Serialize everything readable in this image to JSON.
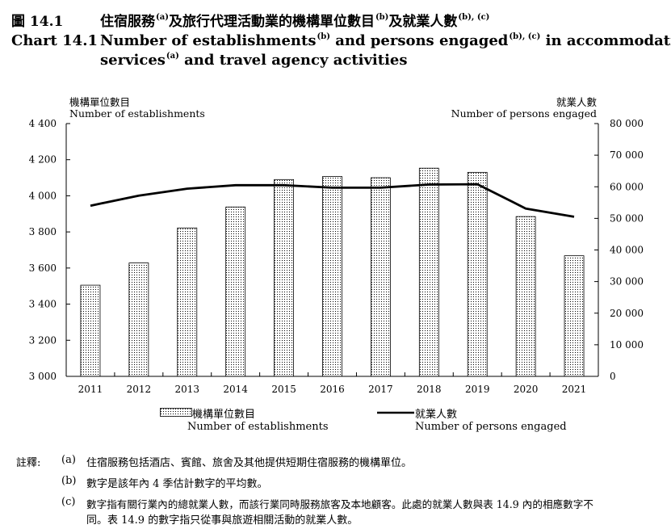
{
  "header": {
    "label_zh": "圖 14.1",
    "title_zh_1": "住宿服務",
    "sup_a_zh": "(a)",
    "title_zh_2": "及旅行代理活動業的機構單位數目",
    "sup_b_zh": "(b)",
    "title_zh_3": "及就業人數",
    "sup_bc_zh": "(b), (c)",
    "label_en": "Chart 14.1",
    "title_en_1": "Number of establishments",
    "sup_b_en": "(b)",
    "title_en_2": " and persons engaged",
    "sup_bc_en": "(b), (c)",
    "title_en_3": " in accommodation",
    "title_en_4": "services",
    "sup_a_en": "(a)",
    "title_en_5": " and travel agency activities"
  },
  "axes": {
    "left_title_zh": "機構單位數目",
    "left_title_en": "Number of establishments",
    "right_title_zh": "就業人數",
    "right_title_en": "Number of persons engaged",
    "left_ticks": [
      "4 400",
      "4 200",
      "4 000",
      "3 800",
      "3 600",
      "3 400",
      "3 200",
      "3 000"
    ],
    "right_ticks": [
      "80 000",
      "70 000",
      "60 000",
      "50 000",
      "40 000",
      "30 000",
      "20 000",
      "10 000",
      "0"
    ]
  },
  "legend": {
    "bar_zh": "機構單位數目",
    "bar_en": "Number of establishments",
    "line_zh": "就業人數",
    "line_en": "Number of persons engaged"
  },
  "notes": {
    "label": "註釋:",
    "a_mark": "(a)",
    "a_text": "住宿服務包括酒店、賓館、旅舍及其他提供短期住宿服務的機構單位。",
    "b_mark": "(b)",
    "b_text": "數字是該年內 4 季估計數字的平均數。",
    "c_mark": "(c)",
    "c_text_1": "數字指有關行業內的總就業人數，而該行業同時服務旅客及本地顧客。此處的就業人數與表 14.9 內的相應數字不",
    "c_text_2": "同。表 14.9 的數字指只從事與旅遊相關活動的就業人數。"
  },
  "colors": {
    "bar_dots": "#000000",
    "line": "#000000"
  },
  "chart_data": {
    "type": "bar+line",
    "categories": [
      "2011",
      "2012",
      "2013",
      "2014",
      "2015",
      "2016",
      "2017",
      "2018",
      "2019",
      "2020",
      "2021"
    ],
    "series": [
      {
        "name": "Number of establishments",
        "axis": "left",
        "kind": "bar",
        "values": [
          3505,
          3628,
          3822,
          3938,
          4090,
          4107,
          4100,
          4153,
          4130,
          3885,
          3668
        ]
      },
      {
        "name": "Number of persons engaged",
        "axis": "right",
        "kind": "line",
        "values": [
          54000,
          57200,
          59400,
          60500,
          60500,
          59700,
          59700,
          60700,
          60800,
          53100,
          50500
        ]
      }
    ],
    "ylim_left": [
      3000,
      4400
    ],
    "ylim_right": [
      0,
      80000
    ]
  }
}
